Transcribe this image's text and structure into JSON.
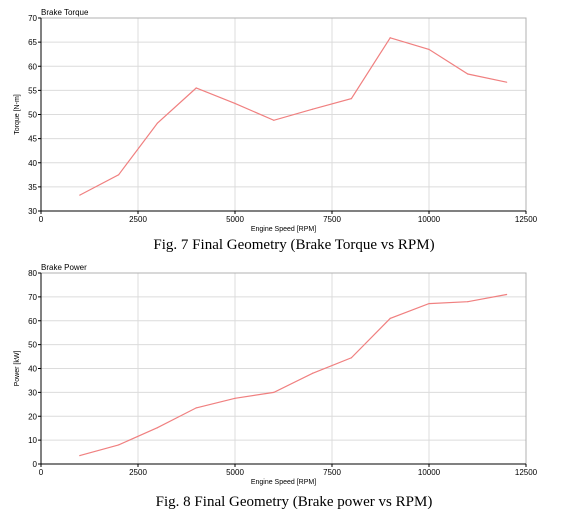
{
  "chart_data": [
    {
      "type": "line",
      "title": "Brake Torque",
      "xlabel": "Engine Speed [RPM]",
      "ylabel": "Torque [N-m]",
      "xlim": [
        0,
        12500
      ],
      "ylim": [
        30,
        70
      ],
      "xticks": [
        0,
        2500,
        5000,
        7500,
        10000,
        12500
      ],
      "yticks": [
        30,
        35,
        40,
        45,
        50,
        55,
        60,
        65,
        70
      ],
      "grid": true,
      "line_color": "#f08080",
      "x": [
        1000,
        2000,
        3000,
        4000,
        5000,
        6000,
        7000,
        8000,
        9000,
        10000,
        11000,
        12000
      ],
      "y": [
        33.3,
        37.5,
        48.2,
        55.5,
        52.3,
        48.8,
        51.1,
        53.3,
        65.9,
        63.5,
        58.4,
        56.7
      ],
      "caption": "Fig. 7 Final Geometry (Brake Torque vs RPM)"
    },
    {
      "type": "line",
      "title": "Brake Power",
      "xlabel": "Engine Speed [RPM]",
      "ylabel": "Power [kW]",
      "xlim": [
        0,
        12500
      ],
      "ylim": [
        0,
        80
      ],
      "xticks": [
        0,
        2500,
        5000,
        7500,
        10000,
        12500
      ],
      "yticks": [
        0,
        10,
        20,
        30,
        40,
        50,
        60,
        70,
        80
      ],
      "grid": true,
      "line_color": "#f08080",
      "x": [
        1000,
        2000,
        3000,
        4000,
        5000,
        6000,
        7000,
        8000,
        9000,
        10000,
        11000,
        12000
      ],
      "y": [
        3.5,
        8.0,
        15.2,
        23.5,
        27.5,
        30.0,
        38.0,
        44.5,
        61.0,
        67.2,
        68.0,
        71.0
      ],
      "caption": "Fig. 8 Final Geometry (Brake power vs RPM)"
    }
  ]
}
